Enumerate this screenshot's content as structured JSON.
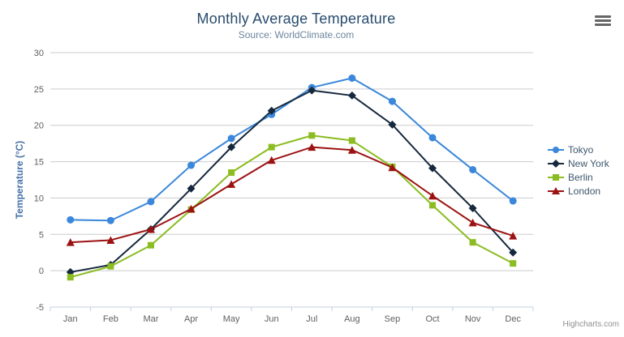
{
  "chart_data": {
    "type": "line",
    "title": "Monthly Average Temperature",
    "subtitle": "Source: WorldClimate.com",
    "xlabel": "",
    "ylabel": "Temperature (°C)",
    "categories": [
      "Jan",
      "Feb",
      "Mar",
      "Apr",
      "May",
      "Jun",
      "Jul",
      "Aug",
      "Sep",
      "Oct",
      "Nov",
      "Dec"
    ],
    "yticks": [
      -5,
      0,
      5,
      10,
      15,
      20,
      25,
      30
    ],
    "ylim": [
      -5,
      30
    ],
    "grid": true,
    "legend_position": "right",
    "series": [
      {
        "name": "Tokyo",
        "color": "#3a87db",
        "marker": "circle",
        "values": [
          7.0,
          6.9,
          9.5,
          14.5,
          18.2,
          21.5,
          25.2,
          26.5,
          23.3,
          18.3,
          13.9,
          9.6
        ]
      },
      {
        "name": "New York",
        "color": "#16283d",
        "marker": "diamond",
        "values": [
          -0.2,
          0.8,
          5.7,
          11.3,
          17.0,
          22.0,
          24.8,
          24.1,
          20.1,
          14.1,
          8.6,
          2.5
        ]
      },
      {
        "name": "Berlin",
        "color": "#8bbc21",
        "marker": "square",
        "values": [
          -0.9,
          0.6,
          3.5,
          8.4,
          13.5,
          17.0,
          18.6,
          17.9,
          14.3,
          9.0,
          3.9,
          1.0
        ]
      },
      {
        "name": "London",
        "color": "#9c1212",
        "marker": "triangle",
        "values": [
          3.9,
          4.2,
          5.7,
          8.5,
          11.9,
          15.2,
          17.0,
          16.6,
          14.2,
          10.3,
          6.6,
          4.8
        ]
      }
    ]
  },
  "footer": {
    "credits": "Highcharts.com"
  },
  "icons": {
    "export_menu": "hamburger-menu-icon"
  },
  "colors": {
    "title": "#274b6d",
    "subtitle": "#6d869f",
    "axis_title": "#4572a7",
    "tick_label": "#606060",
    "grid_line": "#cccccc",
    "axis_line": "#c0d0e0",
    "legend_text": "#3e576f",
    "credits": "#909090",
    "menu_icon": "#666666"
  }
}
